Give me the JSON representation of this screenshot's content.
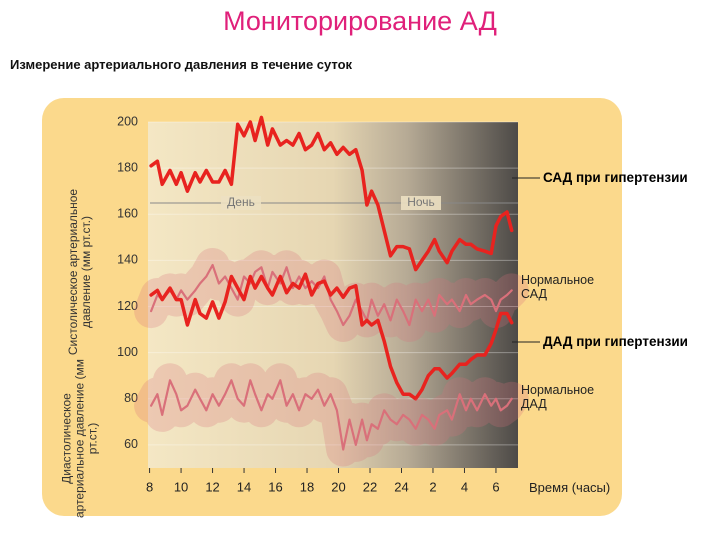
{
  "chart_data": {
    "type": "line",
    "title": "Мониторирование АД",
    "subtitle": "Измерение артериального давления в течение суток",
    "x_label": "Время (часы)",
    "y_label_upper": "Систолическое артериальное давление (мм рт.ст.)",
    "y_label_lower": "Диастолическое артериальное давление (мм рт.ст.)",
    "annotations": [
      "День",
      "Ночь"
    ],
    "xlim": [
      7.9,
      31.4
    ],
    "xticks": [
      8,
      10,
      12,
      14,
      16,
      18,
      20,
      22,
      24,
      {
        "value": 26,
        "label": "2"
      },
      {
        "value": 28,
        "label": "4"
      },
      {
        "value": 30,
        "label": "6"
      }
    ],
    "ylim": [
      50,
      200
    ],
    "yticks": [
      60,
      80,
      100,
      120,
      140,
      160,
      180,
      200
    ],
    "x": [
      8.1,
      8.5,
      8.8,
      9.3,
      9.7,
      10.0,
      10.4,
      10.9,
      11.2,
      11.6,
      12.0,
      12.4,
      12.8,
      13.2,
      13.6,
      14.0,
      14.4,
      14.7,
      15.1,
      15.5,
      15.8,
      16.3,
      16.7,
      17.1,
      17.5,
      17.9,
      18.3,
      18.7,
      19.1,
      19.5,
      19.9,
      20.3,
      20.7,
      21.1,
      21.5,
      21.8,
      22.1,
      22.5,
      22.9,
      23.3,
      23.7,
      24.1,
      24.5,
      24.9,
      25.3,
      25.7,
      26.1,
      26.4,
      26.9,
      27.2,
      27.7,
      28.1,
      28.4,
      28.8,
      29.3,
      29.7,
      30.0,
      30.3,
      30.7,
      31.0
    ],
    "series": [
      {
        "name": "САД при гипертензии",
        "color": "#e8231f",
        "values": [
          181,
          183,
          173,
          179,
          173,
          178,
          170,
          178,
          174,
          179,
          174,
          174,
          179,
          173,
          199,
          194,
          200,
          192,
          202,
          190,
          197,
          190,
          192,
          190,
          195,
          188,
          190,
          195,
          188,
          191,
          186,
          189,
          186,
          188,
          179,
          164,
          170,
          164,
          153,
          142,
          146,
          146,
          145,
          136,
          140,
          144,
          149,
          144,
          139,
          144,
          149,
          147,
          147,
          145,
          144,
          143,
          155,
          159,
          161,
          153
        ]
      },
      {
        "name": "Нормальное САД",
        "color": "#d9707a",
        "values": [
          118,
          125,
          123,
          127,
          123,
          127,
          123,
          127,
          130,
          133,
          138,
          130,
          133,
          128,
          123,
          133,
          130,
          135,
          137,
          128,
          135,
          130,
          137,
          128,
          133,
          128,
          131,
          128,
          133,
          123,
          118,
          112,
          116,
          123,
          118,
          114,
          123,
          116,
          121,
          114,
          123,
          118,
          112,
          123,
          118,
          123,
          116,
          125,
          121,
          123,
          118,
          125,
          121,
          123,
          125,
          123,
          118,
          123,
          125,
          127
        ]
      },
      {
        "name": "ДАД при гипертензии",
        "color": "#e8231f",
        "values": [
          125,
          127,
          123,
          128,
          123,
          123,
          112,
          123,
          117,
          115,
          122,
          115,
          122,
          133,
          128,
          123,
          133,
          128,
          133,
          128,
          125,
          133,
          126,
          130,
          128,
          134,
          125,
          130,
          131,
          125,
          128,
          124,
          128,
          129,
          112,
          114,
          112,
          114,
          105,
          94,
          87,
          82,
          82,
          80,
          84,
          90,
          93,
          93,
          89,
          91,
          95,
          95,
          97,
          99,
          99,
          104,
          110,
          117,
          117,
          113
        ]
      },
      {
        "name": "Нормальное ДАД",
        "color": "#d9707a",
        "values": [
          77,
          82,
          73,
          88,
          82,
          75,
          77,
          84,
          80,
          75,
          82,
          77,
          82,
          88,
          80,
          77,
          88,
          82,
          75,
          82,
          80,
          88,
          77,
          82,
          75,
          82,
          80,
          84,
          77,
          82,
          75,
          58,
          71,
          60,
          71,
          62,
          69,
          67,
          75,
          71,
          69,
          73,
          71,
          67,
          73,
          71,
          67,
          73,
          75,
          71,
          82,
          75,
          80,
          75,
          82,
          77,
          80,
          75,
          77,
          80
        ]
      }
    ]
  }
}
